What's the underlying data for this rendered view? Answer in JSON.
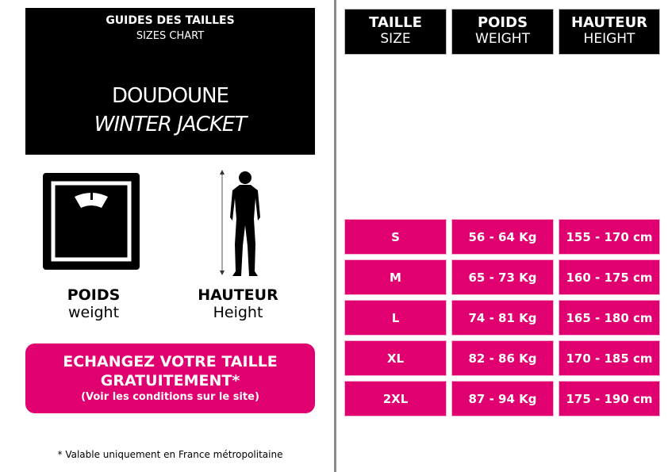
{
  "title_box": {
    "line1": "GUIDES DES TAILLES",
    "line2": "SIZES CHART",
    "line3": "DOUDOUNE",
    "line4": "WINTER JACKET"
  },
  "icons": {
    "weight": "scale-icon",
    "height": "human-height-icon"
  },
  "labels": {
    "weight_fr": "POIDS",
    "weight_en": "weight",
    "height_fr": "HAUTEUR",
    "height_en": "Height"
  },
  "promo": {
    "line1": "ECHANGEZ VOTRE TAILLE",
    "line2": "GRATUITEMENT*",
    "line3": "(Voir les conditions sur le site)"
  },
  "note": "* Valable uniquement en France métropolitaine",
  "colors": {
    "accent": "#e0006f",
    "header": "#000000"
  },
  "table": {
    "headers": [
      {
        "fr": "TAILLE",
        "en": "SIZE"
      },
      {
        "fr": "POIDS",
        "en": "WEIGHT"
      },
      {
        "fr": "HAUTEUR",
        "en": "HEIGHT"
      }
    ],
    "rows": [
      [
        "S",
        "56 - 64 Kg",
        "155 - 170 cm"
      ],
      [
        "M",
        "65 - 73 Kg",
        "160 - 175 cm"
      ],
      [
        "L",
        "74 - 81 Kg",
        "165 - 180 cm"
      ],
      [
        "XL",
        "82 - 86 Kg",
        "170 - 185 cm"
      ],
      [
        "2XL",
        "87 - 94 Kg",
        "175 - 190 cm"
      ]
    ]
  }
}
